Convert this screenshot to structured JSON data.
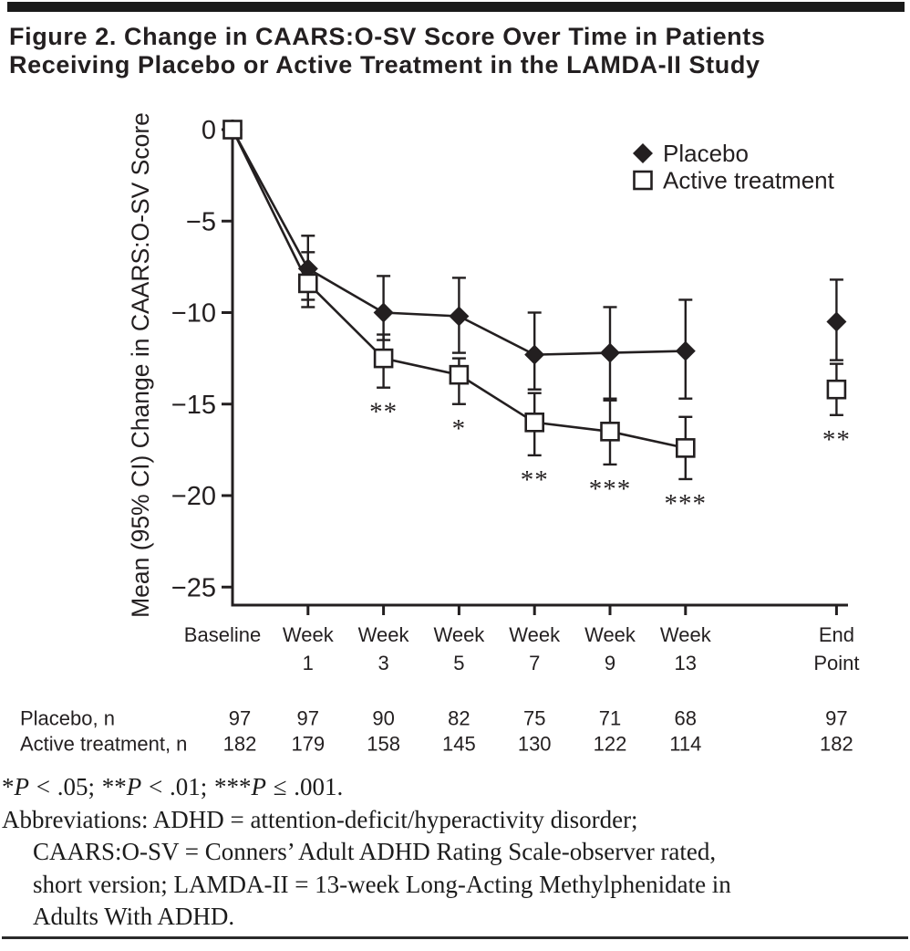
{
  "colors": {
    "ink": "#231f20",
    "background": "#ffffff"
  },
  "header": {
    "title_lines": [
      "Figure 2. Change in CAARS:O-SV Score Over Time in Patients",
      "Receiving Placebo or Active Treatment in the LAMDA-II Study"
    ]
  },
  "chart_data": {
    "type": "line",
    "title": "Figure 2. Change in CAARS:O-SV Score Over Time in Patients Receiving Placebo or Active Treatment in the LAMDA-II Study",
    "ylabel": "Mean (95% CI) Change in CAARS:O-SV Score",
    "xlabel": "",
    "ylim": [
      -26,
      0.5
    ],
    "yticks": [
      0,
      -5,
      -10,
      -15,
      -20,
      -25
    ],
    "grid": false,
    "legend_position": "top-right",
    "categories": [
      "Baseline",
      "Week 1",
      "Week 3",
      "Week 5",
      "Week 7",
      "Week 9",
      "Week 13",
      "End Point"
    ],
    "x_slots": [
      0,
      1,
      2,
      3,
      4,
      5,
      6,
      8
    ],
    "endpoint_detached": true,
    "connected_through_index": 6,
    "series": [
      {
        "name": "Placebo",
        "marker": "filled-diamond",
        "means": [
          0,
          -7.6,
          -10.0,
          -10.2,
          -12.3,
          -12.2,
          -12.1,
          -10.5
        ],
        "ci_upper": [
          0,
          -5.8,
          -8.0,
          -8.1,
          -10.0,
          -9.7,
          -9.3,
          -8.2
        ],
        "ci_lower": [
          0,
          -9.3,
          -11.5,
          -12.2,
          -14.2,
          -14.7,
          -14.7,
          -12.6
        ]
      },
      {
        "name": "Active treatment",
        "marker": "open-square",
        "means": [
          0,
          -8.4,
          -12.5,
          -13.4,
          -16.0,
          -16.5,
          -17.4,
          -14.2
        ],
        "ci_upper": [
          0,
          -6.7,
          -11.2,
          -12.5,
          -14.4,
          -14.8,
          -15.7,
          -12.8
        ],
        "ci_lower": [
          0,
          -9.7,
          -14.1,
          -15.0,
          -17.8,
          -18.3,
          -19.1,
          -15.6
        ]
      }
    ],
    "significance": [
      "",
      "",
      "**",
      "*",
      "**",
      "***",
      "***",
      "**"
    ],
    "n_table": {
      "rows": [
        {
          "label": "Placebo, n",
          "values": [
            97,
            97,
            90,
            82,
            75,
            71,
            68,
            97
          ]
        },
        {
          "label": "Active treatment, n",
          "values": [
            182,
            179,
            158,
            145,
            130,
            122,
            114,
            182
          ]
        }
      ]
    }
  },
  "footnotes": {
    "significance_note": "*P < .05;  **P < .01;  ***P ≤ .001.",
    "abbreviations_lines": [
      "Abbreviations: ADHD = attention-deficit/hyperactivity disorder;",
      "CAARS:O-SV = Conners’ Adult ADHD Rating Scale-observer rated,",
      "short version; LAMDA-II = 13-week Long-Acting Methylphenidate in",
      "Adults With ADHD."
    ]
  }
}
